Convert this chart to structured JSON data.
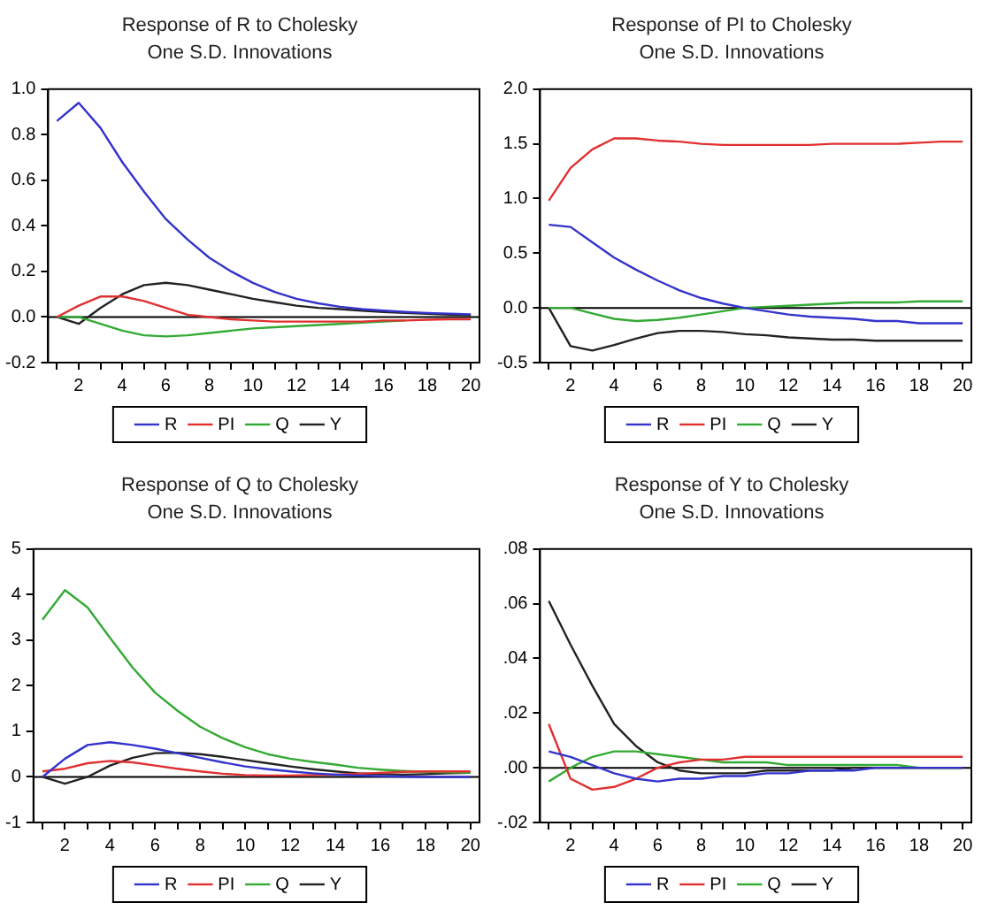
{
  "chart_data": [
    {
      "type": "line",
      "title": "Response of R to Cholesky",
      "subtitle": "One S.D. Innovations",
      "x": [
        1,
        2,
        3,
        4,
        5,
        6,
        7,
        8,
        9,
        10,
        11,
        12,
        13,
        14,
        15,
        16,
        17,
        18,
        19,
        20
      ],
      "xlim": [
        0.6,
        20.4
      ],
      "xticks": [
        {
          "value": 1,
          "label": null
        },
        2,
        {
          "value": 3,
          "label": null
        },
        4,
        {
          "value": 5,
          "label": null
        },
        6,
        {
          "value": 7,
          "label": null
        },
        8,
        {
          "value": 9,
          "label": null
        },
        10,
        {
          "value": 11,
          "label": null
        },
        12,
        {
          "value": 13,
          "label": null
        },
        14,
        {
          "value": 15,
          "label": null
        },
        16,
        {
          "value": 17,
          "label": null
        },
        18,
        {
          "value": 19,
          "label": null
        },
        20
      ],
      "ylim": [
        -0.2,
        1.0
      ],
      "yticks": [
        {
          "value": -0.2,
          "label": "-0.2"
        },
        {
          "value": 0,
          "label": "0.0"
        },
        {
          "value": 0.2,
          "label": "0.2"
        },
        {
          "value": 0.4,
          "label": "0.4"
        },
        {
          "value": 0.6,
          "label": "0.6"
        },
        {
          "value": 0.8,
          "label": "0.8"
        },
        {
          "value": 1,
          "label": "1.0"
        }
      ],
      "grid": false,
      "legend": "bottom",
      "marker": "none",
      "line_style": "solid",
      "ref_lines": [
        {
          "axis": "y",
          "value": 0,
          "color": "#000000"
        }
      ],
      "series": [
        {
          "name": "R",
          "color": "#3333cc",
          "values": [
            0.86,
            0.94,
            0.83,
            0.68,
            0.55,
            0.43,
            0.34,
            0.26,
            0.2,
            0.15,
            0.11,
            0.08,
            0.06,
            0.045,
            0.035,
            0.028,
            0.022,
            0.018,
            0.015,
            0.012
          ]
        },
        {
          "name": "PI",
          "color": "#e03030",
          "values": [
            0,
            0.05,
            0.09,
            0.09,
            0.07,
            0.04,
            0.01,
            0,
            -0.01,
            -0.015,
            -0.02,
            -0.02,
            -0.02,
            -0.02,
            -0.02,
            -0.015,
            -0.015,
            -0.012,
            -0.01,
            -0.01
          ]
        },
        {
          "name": "Q",
          "color": "#33aa33",
          "values": [
            0,
            0,
            -0.03,
            -0.06,
            -0.08,
            -0.085,
            -0.08,
            -0.07,
            -0.06,
            -0.05,
            -0.045,
            -0.04,
            -0.035,
            -0.03,
            -0.025,
            -0.02,
            -0.015,
            null,
            null,
            null
          ]
        },
        {
          "name": "Y",
          "color": "#222222",
          "values": [
            0,
            -0.03,
            0.04,
            0.1,
            0.14,
            0.15,
            0.14,
            0.12,
            0.1,
            0.08,
            0.065,
            0.05,
            0.04,
            0.035,
            0.028,
            0.022,
            0.018,
            0.014,
            0.01,
            0.008
          ]
        }
      ]
    },
    {
      "type": "line",
      "title": "Response of PI to Cholesky",
      "subtitle": "One S.D. Innovations",
      "x": [
        1,
        2,
        3,
        4,
        5,
        6,
        7,
        8,
        9,
        10,
        11,
        12,
        13,
        14,
        15,
        16,
        17,
        18,
        19,
        20
      ],
      "xlim": [
        0.6,
        20.4
      ],
      "xticks": [
        {
          "value": 1,
          "label": null
        },
        2,
        {
          "value": 3,
          "label": null
        },
        4,
        {
          "value": 5,
          "label": null
        },
        6,
        {
          "value": 7,
          "label": null
        },
        8,
        {
          "value": 9,
          "label": null
        },
        10,
        {
          "value": 11,
          "label": null
        },
        12,
        {
          "value": 13,
          "label": null
        },
        14,
        {
          "value": 15,
          "label": null
        },
        16,
        {
          "value": 17,
          "label": null
        },
        18,
        {
          "value": 19,
          "label": null
        },
        20
      ],
      "ylim": [
        -0.5,
        2.0
      ],
      "yticks": [
        {
          "value": -0.5,
          "label": "-0.5"
        },
        {
          "value": 0,
          "label": "0.0"
        },
        {
          "value": 0.5,
          "label": "0.5"
        },
        {
          "value": 1,
          "label": "1.0"
        },
        {
          "value": 1.5,
          "label": "1.5"
        },
        {
          "value": 2,
          "label": "2.0"
        }
      ],
      "grid": false,
      "legend": "bottom",
      "marker": "none",
      "line_style": "solid",
      "ref_lines": [
        {
          "axis": "y",
          "value": 0,
          "color": "#000000"
        }
      ],
      "series": [
        {
          "name": "R",
          "color": "#3333cc",
          "values": [
            0.76,
            0.74,
            0.6,
            0.46,
            0.35,
            0.25,
            0.16,
            0.09,
            0.04,
            0,
            -0.03,
            -0.06,
            -0.08,
            -0.09,
            -0.1,
            -0.12,
            -0.12,
            -0.14,
            -0.14,
            -0.14
          ]
        },
        {
          "name": "PI",
          "color": "#e03030",
          "values": [
            0.98,
            1.28,
            1.45,
            1.55,
            1.55,
            1.53,
            1.52,
            1.5,
            1.49,
            1.49,
            1.49,
            1.49,
            1.49,
            1.5,
            1.5,
            1.5,
            1.5,
            1.51,
            1.52,
            1.52
          ]
        },
        {
          "name": "Q",
          "color": "#33aa33",
          "values": [
            0,
            0,
            -0.05,
            -0.1,
            -0.12,
            -0.11,
            -0.09,
            -0.06,
            -0.03,
            0,
            0.01,
            0.02,
            0.03,
            0.04,
            0.05,
            0.05,
            0.05,
            0.06,
            0.06,
            0.06
          ]
        },
        {
          "name": "Y",
          "color": "#222222",
          "values": [
            0,
            -0.35,
            -0.39,
            -0.34,
            -0.28,
            -0.23,
            -0.21,
            -0.21,
            -0.22,
            -0.24,
            -0.25,
            -0.27,
            -0.28,
            -0.29,
            -0.29,
            -0.3,
            -0.3,
            -0.3,
            -0.3,
            -0.3
          ]
        }
      ]
    },
    {
      "type": "line",
      "title": "Response of Q to Cholesky",
      "subtitle": "One S.D. Innovations",
      "x": [
        1,
        2,
        3,
        4,
        5,
        6,
        7,
        8,
        9,
        10,
        11,
        12,
        13,
        14,
        15,
        16,
        17,
        18,
        19,
        20
      ],
      "xlim": [
        0.6,
        20.4
      ],
      "xticks": [
        {
          "value": 1,
          "label": null
        },
        2,
        {
          "value": 3,
          "label": null
        },
        4,
        {
          "value": 5,
          "label": null
        },
        6,
        {
          "value": 7,
          "label": null
        },
        8,
        {
          "value": 9,
          "label": null
        },
        10,
        {
          "value": 11,
          "label": null
        },
        12,
        {
          "value": 13,
          "label": null
        },
        14,
        {
          "value": 15,
          "label": null
        },
        16,
        {
          "value": 17,
          "label": null
        },
        18,
        {
          "value": 19,
          "label": null
        },
        20
      ],
      "ylim": [
        -1,
        5
      ],
      "yticks": [
        -1,
        0,
        1,
        2,
        3,
        4,
        5
      ],
      "grid": false,
      "legend": "bottom",
      "marker": "none",
      "line_style": "solid",
      "ref_lines": [
        {
          "axis": "y",
          "value": 0,
          "color": "#000000"
        }
      ],
      "series": [
        {
          "name": "R",
          "color": "#3333cc",
          "values": [
            0,
            0.4,
            0.7,
            0.76,
            0.7,
            0.62,
            0.52,
            0.42,
            0.32,
            0.23,
            0.17,
            0.12,
            0.08,
            0.05,
            0.03,
            0.02,
            0.01,
            0,
            0,
            0
          ]
        },
        {
          "name": "PI",
          "color": "#e03030",
          "values": [
            0.12,
            0.18,
            0.3,
            0.35,
            0.32,
            0.25,
            0.18,
            0.12,
            0.07,
            0.04,
            0.03,
            0.03,
            0.04,
            0.05,
            0.07,
            0.09,
            0.11,
            0.12,
            0.12,
            0.12
          ]
        },
        {
          "name": "Q",
          "color": "#33aa33",
          "values": [
            3.45,
            4.1,
            3.72,
            3.05,
            2.4,
            1.85,
            1.45,
            1.1,
            0.85,
            0.65,
            0.5,
            0.4,
            0.33,
            0.27,
            0.2,
            0.16,
            0.13,
            0.11,
            0.1,
            0.09
          ]
        },
        {
          "name": "Y",
          "color": "#222222",
          "values": [
            0,
            -0.15,
            0,
            0.25,
            0.42,
            0.52,
            0.53,
            0.5,
            0.44,
            0.37,
            0.3,
            0.23,
            0.17,
            0.12,
            0.08,
            0.06,
            0.05,
            0.06,
            0.08,
            0.09
          ]
        }
      ]
    },
    {
      "type": "line",
      "title": "Response of Y to Cholesky",
      "subtitle": "One S.D. Innovations",
      "x": [
        1,
        2,
        3,
        4,
        5,
        6,
        7,
        8,
        9,
        10,
        11,
        12,
        13,
        14,
        15,
        16,
        17,
        18,
        19,
        20
      ],
      "xlim": [
        0.6,
        20.4
      ],
      "xticks": [
        {
          "value": 1,
          "label": null
        },
        2,
        {
          "value": 3,
          "label": null
        },
        4,
        {
          "value": 5,
          "label": null
        },
        6,
        {
          "value": 7,
          "label": null
        },
        8,
        {
          "value": 9,
          "label": null
        },
        10,
        {
          "value": 11,
          "label": null
        },
        12,
        {
          "value": 13,
          "label": null
        },
        14,
        {
          "value": 15,
          "label": null
        },
        16,
        {
          "value": 17,
          "label": null
        },
        18,
        {
          "value": 19,
          "label": null
        },
        20
      ],
      "ylim": [
        -0.02,
        0.08
      ],
      "yticks": [
        {
          "value": -0.02,
          "label": "-.02"
        },
        {
          "value": 0,
          "label": ".00"
        },
        {
          "value": 0.02,
          "label": ".02"
        },
        {
          "value": 0.04,
          "label": ".04"
        },
        {
          "value": 0.06,
          "label": ".06"
        },
        {
          "value": 0.08,
          "label": ".08"
        }
      ],
      "grid": false,
      "legend": "bottom",
      "marker": "none",
      "line_style": "solid",
      "ref_lines": [
        {
          "axis": "y",
          "value": 0,
          "color": "#000000"
        }
      ],
      "series": [
        {
          "name": "R",
          "color": "#3333cc",
          "values": [
            0.006,
            0.004,
            0.001,
            -0.002,
            -0.004,
            -0.005,
            -0.004,
            -0.004,
            -0.003,
            -0.003,
            -0.002,
            -0.002,
            -0.001,
            -0.001,
            -0.001,
            0,
            0,
            0,
            0,
            0
          ]
        },
        {
          "name": "PI",
          "color": "#e03030",
          "values": [
            0.016,
            -0.004,
            -0.008,
            -0.007,
            -0.004,
            0,
            0.002,
            0.003,
            0.003,
            0.004,
            0.004,
            0.004,
            0.004,
            0.004,
            0.004,
            0.004,
            0.004,
            0.004,
            0.004,
            0.004
          ]
        },
        {
          "name": "Q",
          "color": "#33aa33",
          "values": [
            -0.005,
            0,
            0.004,
            0.006,
            0.006,
            0.005,
            0.004,
            0.003,
            0.002,
            0.002,
            0.002,
            0.001,
            0.001,
            0.001,
            0.001,
            0.001,
            0.001,
            0,
            0,
            0
          ]
        },
        {
          "name": "Y",
          "color": "#222222",
          "values": [
            0.061,
            0.045,
            0.03,
            0.016,
            0.008,
            0.002,
            -0.001,
            -0.002,
            -0.002,
            -0.002,
            -0.001,
            -0.001,
            -0.001,
            -0.001,
            0,
            0,
            0,
            0,
            0,
            0
          ]
        }
      ]
    }
  ]
}
